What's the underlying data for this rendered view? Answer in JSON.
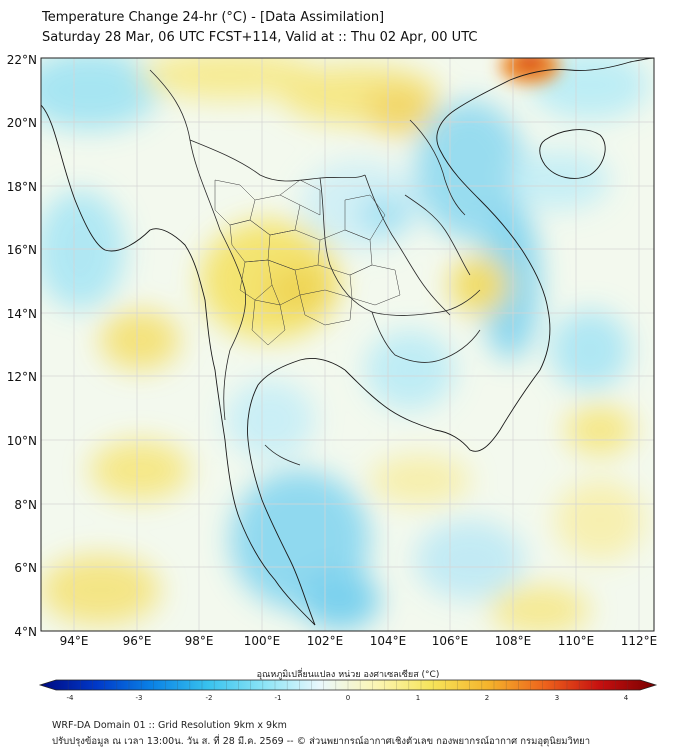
{
  "title_line1": "Temperature Change 24-hr (°C) - [Data Assimilation]",
  "title_line2": "Saturday 28 Mar, 06 UTC FCST+114, Valid at :: Thu 02 Apr, 00 UTC",
  "lat_labels": [
    "4°N",
    "6°N",
    "8°N",
    "10°N",
    "12°N",
    "14°N",
    "16°N",
    "18°N",
    "20°N",
    "22°N"
  ],
  "lon_labels": [
    "94°E",
    "96°E",
    "98°E",
    "100°E",
    "102°E",
    "104°E",
    "106°E",
    "108°E",
    "110°E",
    "112°E"
  ],
  "colorbar": {
    "label": "อุณหภูมิเปลี่ยนแปลง หน่วย องศาเซลเซียส (°C)",
    "tick_labels": [
      "-4",
      "-3",
      "-2",
      "-1",
      "0",
      "1",
      "2",
      "3",
      "4"
    ],
    "min": -4,
    "max": 4,
    "colors": [
      "#000a80",
      "#0038c8",
      "#0a82e6",
      "#38c2ee",
      "#8ce4f6",
      "#eaf8fc",
      "#fbf5b4",
      "#f6e45a",
      "#f4b42c",
      "#ee641c",
      "#c61010",
      "#780000"
    ]
  },
  "footer_line1": "WRF-DA Domain 01 :: Grid Resolution 9km x 9km",
  "footer_line2": "ปรับปรุงข้อมูล ณ เวลา 13:00น. วัน ส. ที่ 28 มี.ค. 2569 -- © ส่วนพยากรณ์อากาศเชิงตัวเลข กองพยากรณ์อากาศ กรมอุตุนิยมวิทยา",
  "colors": {
    "coast": "#1a1a1a",
    "border": "#222222",
    "grid": "#c8c8c8"
  }
}
